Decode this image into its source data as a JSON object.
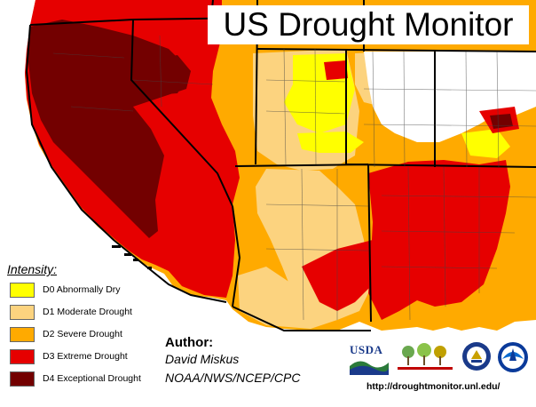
{
  "title": "US Drought Monitor",
  "legend": {
    "title": "Intensity:",
    "items": [
      {
        "code": "D0",
        "label": "D0 Abnormally Dry",
        "color": "#ffff00"
      },
      {
        "code": "D1",
        "label": "D1 Moderate Drought",
        "color": "#fcd37f"
      },
      {
        "code": "D2",
        "label": "D2 Severe Drought",
        "color": "#ffaa00"
      },
      {
        "code": "D3",
        "label": "D3 Extreme Drought",
        "color": "#e60000"
      },
      {
        "code": "D4",
        "label": "D4 Exceptional Drought",
        "color": "#730000"
      }
    ]
  },
  "author": {
    "label": "Author:",
    "name": "David Miskus",
    "org": "NOAA/NWS/NCEP/CPC"
  },
  "logos": {
    "usda": "USDA",
    "names": [
      "usda-logo",
      "ndmc-logo",
      "doc-logo",
      "noaa-logo"
    ]
  },
  "url": "http://droughtmonitor.unl.edu/",
  "colors": {
    "none": "#ffffff",
    "ocean": "#ffffff",
    "state_border": "#000000",
    "county_border": "#555555"
  }
}
